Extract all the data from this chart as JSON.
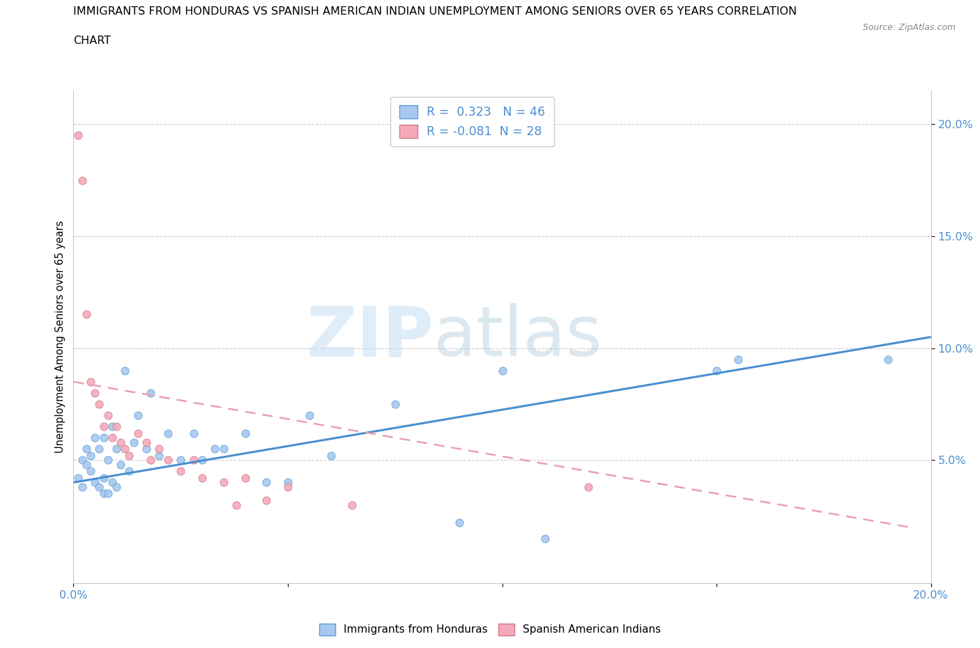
{
  "title_line1": "IMMIGRANTS FROM HONDURAS VS SPANISH AMERICAN INDIAN UNEMPLOYMENT AMONG SENIORS OVER 65 YEARS CORRELATION",
  "title_line2": "CHART",
  "source": "Source: ZipAtlas.com",
  "ylabel": "Unemployment Among Seniors over 65 years",
  "blue_R": 0.323,
  "blue_N": 46,
  "pink_R": -0.081,
  "pink_N": 28,
  "blue_color": "#a8c8f0",
  "pink_color": "#f4aabb",
  "blue_edge_color": "#5a9fd4",
  "pink_edge_color": "#d07888",
  "blue_line_color": "#4a8fd0",
  "pink_line_color": "#e8a0b0",
  "legend_blue_label": "Immigrants from Honduras",
  "legend_pink_label": "Spanish American Indians",
  "watermark_part1": "ZIP",
  "watermark_part2": "atlas",
  "xlim": [
    0.0,
    0.2
  ],
  "ylim": [
    -0.005,
    0.215
  ],
  "y_ticks": [
    0.05,
    0.1,
    0.15,
    0.2
  ],
  "y_tick_labels": [
    "5.0%",
    "10.0%",
    "15.0%",
    "20.0%"
  ],
  "x_ticks": [
    0.0,
    0.05,
    0.1,
    0.15,
    0.2
  ],
  "x_tick_labels": [
    "0.0%",
    "",
    "",
    "",
    "20.0%"
  ],
  "blue_scatter_x": [
    0.001,
    0.002,
    0.002,
    0.003,
    0.003,
    0.004,
    0.004,
    0.005,
    0.005,
    0.006,
    0.006,
    0.007,
    0.007,
    0.007,
    0.008,
    0.008,
    0.009,
    0.009,
    0.01,
    0.01,
    0.011,
    0.012,
    0.013,
    0.014,
    0.015,
    0.017,
    0.018,
    0.02,
    0.022,
    0.025,
    0.028,
    0.03,
    0.033,
    0.035,
    0.04,
    0.045,
    0.05,
    0.055,
    0.06,
    0.075,
    0.09,
    0.1,
    0.11,
    0.15,
    0.155,
    0.19
  ],
  "blue_scatter_y": [
    0.042,
    0.05,
    0.038,
    0.055,
    0.048,
    0.045,
    0.052,
    0.04,
    0.06,
    0.038,
    0.055,
    0.035,
    0.042,
    0.06,
    0.035,
    0.05,
    0.04,
    0.065,
    0.038,
    0.055,
    0.048,
    0.09,
    0.045,
    0.058,
    0.07,
    0.055,
    0.08,
    0.052,
    0.062,
    0.05,
    0.062,
    0.05,
    0.055,
    0.055,
    0.062,
    0.04,
    0.04,
    0.07,
    0.052,
    0.075,
    0.022,
    0.09,
    0.015,
    0.09,
    0.095,
    0.095
  ],
  "pink_scatter_x": [
    0.001,
    0.002,
    0.003,
    0.004,
    0.005,
    0.006,
    0.007,
    0.008,
    0.009,
    0.01,
    0.011,
    0.012,
    0.013,
    0.015,
    0.017,
    0.018,
    0.02,
    0.022,
    0.025,
    0.028,
    0.03,
    0.035,
    0.038,
    0.04,
    0.045,
    0.05,
    0.065,
    0.12
  ],
  "pink_scatter_y": [
    0.195,
    0.175,
    0.115,
    0.085,
    0.08,
    0.075,
    0.065,
    0.07,
    0.06,
    0.065,
    0.058,
    0.055,
    0.052,
    0.062,
    0.058,
    0.05,
    0.055,
    0.05,
    0.045,
    0.05,
    0.042,
    0.04,
    0.03,
    0.042,
    0.032,
    0.038,
    0.03,
    0.038
  ],
  "blue_trend_x": [
    0.0,
    0.2
  ],
  "blue_trend_y": [
    0.04,
    0.105
  ],
  "pink_trend_x": [
    0.0,
    0.195
  ],
  "pink_trend_y": [
    0.085,
    0.02
  ]
}
